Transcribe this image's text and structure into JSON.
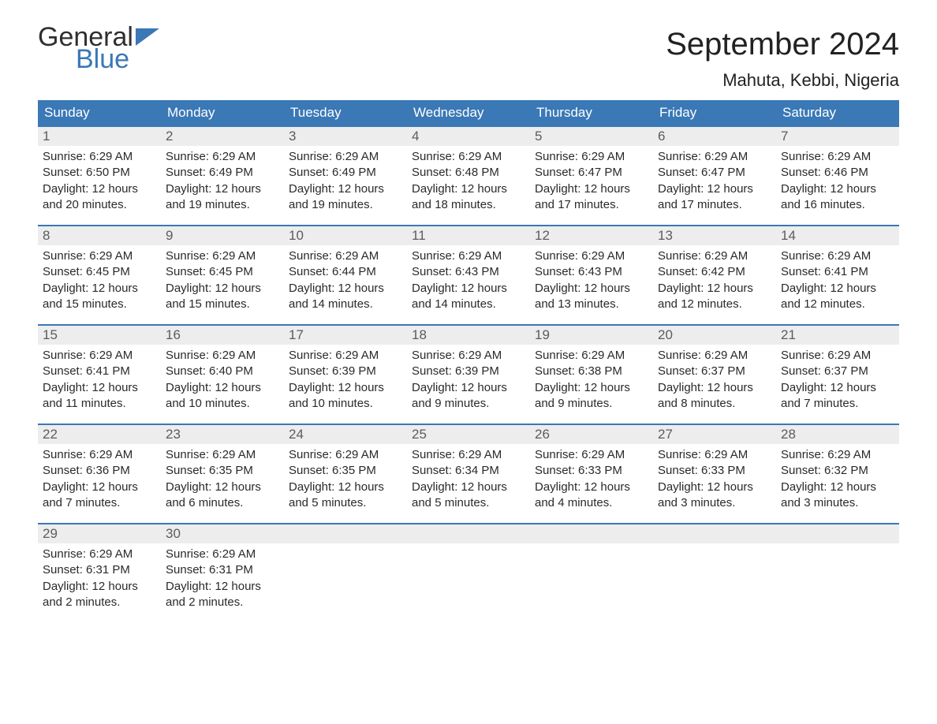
{
  "logo": {
    "word1": "General",
    "word2": "Blue",
    "text_color": "#2f2f2f",
    "accent_color": "#3a78b6"
  },
  "title": "September 2024",
  "location": "Mahuta, Kebbi, Nigeria",
  "colors": {
    "header_bg": "#3a78b6",
    "header_text": "#ffffff",
    "daynum_bg": "#ededed",
    "daynum_text": "#5c5c5c",
    "body_text": "#2a2a2a",
    "week_border": "#3a78b6",
    "page_bg": "#ffffff"
  },
  "fonts": {
    "title_size_pt": 30,
    "location_size_pt": 16,
    "dow_size_pt": 13,
    "daynum_size_pt": 13,
    "body_size_pt": 11
  },
  "days_of_week": [
    "Sunday",
    "Monday",
    "Tuesday",
    "Wednesday",
    "Thursday",
    "Friday",
    "Saturday"
  ],
  "weeks": [
    [
      {
        "num": "1",
        "sunrise": "Sunrise: 6:29 AM",
        "sunset": "Sunset: 6:50 PM",
        "day1": "Daylight: 12 hours",
        "day2": "and 20 minutes."
      },
      {
        "num": "2",
        "sunrise": "Sunrise: 6:29 AM",
        "sunset": "Sunset: 6:49 PM",
        "day1": "Daylight: 12 hours",
        "day2": "and 19 minutes."
      },
      {
        "num": "3",
        "sunrise": "Sunrise: 6:29 AM",
        "sunset": "Sunset: 6:49 PM",
        "day1": "Daylight: 12 hours",
        "day2": "and 19 minutes."
      },
      {
        "num": "4",
        "sunrise": "Sunrise: 6:29 AM",
        "sunset": "Sunset: 6:48 PM",
        "day1": "Daylight: 12 hours",
        "day2": "and 18 minutes."
      },
      {
        "num": "5",
        "sunrise": "Sunrise: 6:29 AM",
        "sunset": "Sunset: 6:47 PM",
        "day1": "Daylight: 12 hours",
        "day2": "and 17 minutes."
      },
      {
        "num": "6",
        "sunrise": "Sunrise: 6:29 AM",
        "sunset": "Sunset: 6:47 PM",
        "day1": "Daylight: 12 hours",
        "day2": "and 17 minutes."
      },
      {
        "num": "7",
        "sunrise": "Sunrise: 6:29 AM",
        "sunset": "Sunset: 6:46 PM",
        "day1": "Daylight: 12 hours",
        "day2": "and 16 minutes."
      }
    ],
    [
      {
        "num": "8",
        "sunrise": "Sunrise: 6:29 AM",
        "sunset": "Sunset: 6:45 PM",
        "day1": "Daylight: 12 hours",
        "day2": "and 15 minutes."
      },
      {
        "num": "9",
        "sunrise": "Sunrise: 6:29 AM",
        "sunset": "Sunset: 6:45 PM",
        "day1": "Daylight: 12 hours",
        "day2": "and 15 minutes."
      },
      {
        "num": "10",
        "sunrise": "Sunrise: 6:29 AM",
        "sunset": "Sunset: 6:44 PM",
        "day1": "Daylight: 12 hours",
        "day2": "and 14 minutes."
      },
      {
        "num": "11",
        "sunrise": "Sunrise: 6:29 AM",
        "sunset": "Sunset: 6:43 PM",
        "day1": "Daylight: 12 hours",
        "day2": "and 14 minutes."
      },
      {
        "num": "12",
        "sunrise": "Sunrise: 6:29 AM",
        "sunset": "Sunset: 6:43 PM",
        "day1": "Daylight: 12 hours",
        "day2": "and 13 minutes."
      },
      {
        "num": "13",
        "sunrise": "Sunrise: 6:29 AM",
        "sunset": "Sunset: 6:42 PM",
        "day1": "Daylight: 12 hours",
        "day2": "and 12 minutes."
      },
      {
        "num": "14",
        "sunrise": "Sunrise: 6:29 AM",
        "sunset": "Sunset: 6:41 PM",
        "day1": "Daylight: 12 hours",
        "day2": "and 12 minutes."
      }
    ],
    [
      {
        "num": "15",
        "sunrise": "Sunrise: 6:29 AM",
        "sunset": "Sunset: 6:41 PM",
        "day1": "Daylight: 12 hours",
        "day2": "and 11 minutes."
      },
      {
        "num": "16",
        "sunrise": "Sunrise: 6:29 AM",
        "sunset": "Sunset: 6:40 PM",
        "day1": "Daylight: 12 hours",
        "day2": "and 10 minutes."
      },
      {
        "num": "17",
        "sunrise": "Sunrise: 6:29 AM",
        "sunset": "Sunset: 6:39 PM",
        "day1": "Daylight: 12 hours",
        "day2": "and 10 minutes."
      },
      {
        "num": "18",
        "sunrise": "Sunrise: 6:29 AM",
        "sunset": "Sunset: 6:39 PM",
        "day1": "Daylight: 12 hours",
        "day2": "and 9 minutes."
      },
      {
        "num": "19",
        "sunrise": "Sunrise: 6:29 AM",
        "sunset": "Sunset: 6:38 PM",
        "day1": "Daylight: 12 hours",
        "day2": "and 9 minutes."
      },
      {
        "num": "20",
        "sunrise": "Sunrise: 6:29 AM",
        "sunset": "Sunset: 6:37 PM",
        "day1": "Daylight: 12 hours",
        "day2": "and 8 minutes."
      },
      {
        "num": "21",
        "sunrise": "Sunrise: 6:29 AM",
        "sunset": "Sunset: 6:37 PM",
        "day1": "Daylight: 12 hours",
        "day2": "and 7 minutes."
      }
    ],
    [
      {
        "num": "22",
        "sunrise": "Sunrise: 6:29 AM",
        "sunset": "Sunset: 6:36 PM",
        "day1": "Daylight: 12 hours",
        "day2": "and 7 minutes."
      },
      {
        "num": "23",
        "sunrise": "Sunrise: 6:29 AM",
        "sunset": "Sunset: 6:35 PM",
        "day1": "Daylight: 12 hours",
        "day2": "and 6 minutes."
      },
      {
        "num": "24",
        "sunrise": "Sunrise: 6:29 AM",
        "sunset": "Sunset: 6:35 PM",
        "day1": "Daylight: 12 hours",
        "day2": "and 5 minutes."
      },
      {
        "num": "25",
        "sunrise": "Sunrise: 6:29 AM",
        "sunset": "Sunset: 6:34 PM",
        "day1": "Daylight: 12 hours",
        "day2": "and 5 minutes."
      },
      {
        "num": "26",
        "sunrise": "Sunrise: 6:29 AM",
        "sunset": "Sunset: 6:33 PM",
        "day1": "Daylight: 12 hours",
        "day2": "and 4 minutes."
      },
      {
        "num": "27",
        "sunrise": "Sunrise: 6:29 AM",
        "sunset": "Sunset: 6:33 PM",
        "day1": "Daylight: 12 hours",
        "day2": "and 3 minutes."
      },
      {
        "num": "28",
        "sunrise": "Sunrise: 6:29 AM",
        "sunset": "Sunset: 6:32 PM",
        "day1": "Daylight: 12 hours",
        "day2": "and 3 minutes."
      }
    ],
    [
      {
        "num": "29",
        "sunrise": "Sunrise: 6:29 AM",
        "sunset": "Sunset: 6:31 PM",
        "day1": "Daylight: 12 hours",
        "day2": "and 2 minutes."
      },
      {
        "num": "30",
        "sunrise": "Sunrise: 6:29 AM",
        "sunset": "Sunset: 6:31 PM",
        "day1": "Daylight: 12 hours",
        "day2": "and 2 minutes."
      },
      {
        "empty": true
      },
      {
        "empty": true
      },
      {
        "empty": true
      },
      {
        "empty": true
      },
      {
        "empty": true
      }
    ]
  ]
}
